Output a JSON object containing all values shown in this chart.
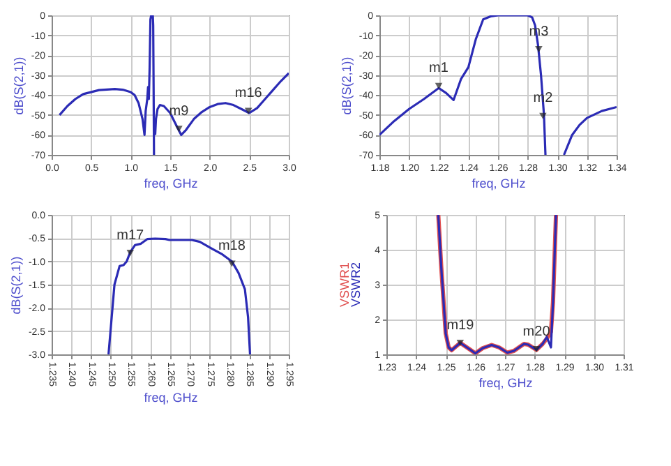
{
  "chart_data": [
    {
      "type": "line",
      "xlabel": "freq, GHz",
      "ylabel": "dB(S(2,1))",
      "x": [
        0.1,
        0.2,
        0.3,
        0.4,
        0.6,
        0.8,
        0.9,
        1.0,
        1.05,
        1.1,
        1.15,
        1.175,
        1.19,
        1.21,
        1.22,
        1.23,
        1.24,
        1.25,
        1.26,
        1.28,
        1.285,
        1.29,
        1.295,
        1.3,
        1.31,
        1.32,
        1.34,
        1.37,
        1.42,
        1.5,
        1.55,
        1.6,
        1.64,
        1.7,
        1.8,
        1.9,
        2.0,
        2.1,
        2.2,
        2.3,
        2.4,
        2.5,
        2.6,
        2.7,
        2.8,
        2.9,
        3.0
      ],
      "series": [
        {
          "color": "#2b2bb5",
          "values": [
            -50,
            -45.5,
            -42,
            -39.5,
            -37.5,
            -37,
            -37.3,
            -38.5,
            -40,
            -44,
            -52,
            -60,
            -48,
            -42,
            -36,
            -42,
            -26,
            -2,
            0,
            0,
            -5,
            -35,
            -70,
            null,
            -60,
            -52,
            -47,
            -45,
            -45.5,
            -49,
            -53,
            -57,
            -60,
            -57.5,
            -52,
            -48.5,
            -46,
            -44.5,
            -44,
            -45,
            -47,
            -49,
            -46.5,
            -42,
            -37.5,
            -33,
            -29
          ]
        }
      ],
      "xlim": [
        0,
        3
      ],
      "ylim": [
        -70,
        0
      ],
      "xticks": [
        {
          "value": 0,
          "label": "0.0"
        },
        0.5,
        {
          "value": 1,
          "label": "1.0"
        },
        1.5,
        {
          "value": 2,
          "label": "2.0"
        },
        2.5,
        {
          "value": 3,
          "label": "3.0"
        }
      ],
      "yticks": [
        -70,
        -60,
        -50,
        -40,
        -30,
        -20,
        -10,
        0
      ],
      "grid": true,
      "annotations": [
        {
          "text": "m9",
          "x": 1.61,
          "y": -57
        },
        {
          "text": "m16",
          "x": 2.49,
          "y": -48
        }
      ]
    },
    {
      "type": "line",
      "xlabel": "freq, GHz",
      "ylabel": "dB(S(2,1))",
      "x": [
        1.18,
        1.19,
        1.2,
        1.21,
        1.22,
        1.225,
        1.23,
        1.235,
        1.24,
        1.245,
        1.25,
        1.255,
        1.26,
        1.28,
        1.283,
        1.285,
        1.287,
        1.289,
        1.291,
        1.292,
        1.3,
        1.3045,
        1.31,
        1.315,
        1.32,
        1.33,
        1.34
      ],
      "series": [
        {
          "color": "#2b2bb5",
          "values": [
            -60,
            -53,
            -47,
            -42,
            -36.5,
            -39,
            -42.5,
            -32,
            -26,
            -12,
            -2,
            -0.5,
            0,
            0,
            -1,
            -5,
            -15,
            -30,
            -50,
            -70,
            null,
            -70,
            -60,
            -55,
            -51.5,
            -48,
            -46
          ]
        }
      ],
      "xlim": [
        1.18,
        1.34
      ],
      "ylim": [
        -70,
        0
      ],
      "xticks": [
        1.18,
        {
          "value": 1.2,
          "label": "1.20"
        },
        1.22,
        1.24,
        1.26,
        1.28,
        {
          "value": 1.3,
          "label": "1.30"
        },
        1.32,
        1.34
      ],
      "yticks": [
        -70,
        -60,
        -50,
        -40,
        -30,
        -20,
        -10,
        0
      ],
      "grid": true,
      "annotations": [
        {
          "text": "m1",
          "x": 1.22,
          "y": -35.5
        },
        {
          "text": "m3",
          "x": 1.2875,
          "y": -17
        },
        {
          "text": "m2",
          "x": 1.2903,
          "y": -50.5
        }
      ]
    },
    {
      "type": "line",
      "xlabel": "freq, GHz",
      "ylabel": "dB(S(2,1))",
      "x": [
        1.2494,
        1.2501,
        1.2509,
        1.2522,
        1.2532,
        1.254,
        1.2549,
        1.2561,
        1.2576,
        1.2592,
        1.2612,
        1.2638,
        1.2648,
        1.2705,
        1.2725,
        1.2756,
        1.2782,
        1.2806,
        1.2823,
        1.2839,
        1.2847,
        1.2852
      ],
      "series": [
        {
          "color": "#2b2bb5",
          "values": [
            -3,
            -2.3,
            -1.5,
            -1.1,
            -1.08,
            -1,
            -0.8,
            -0.65,
            -0.62,
            -0.52,
            -0.51,
            -0.52,
            -0.54,
            -0.54,
            -0.58,
            -0.73,
            -0.85,
            -1,
            -1.25,
            -1.6,
            -2.2,
            -3
          ]
        }
      ],
      "xlim": [
        1.235,
        1.295
      ],
      "ylim": [
        -3,
        0
      ],
      "xticks": [
        1.235,
        {
          "value": 1.24,
          "label": "1.240"
        },
        1.245,
        {
          "value": 1.25,
          "label": "1.250"
        },
        1.255,
        {
          "value": 1.26,
          "label": "1.260"
        },
        1.265,
        {
          "value": 1.27,
          "label": "1.270"
        },
        1.275,
        {
          "value": 1.28,
          "label": "1.280"
        },
        1.285,
        {
          "value": 1.29,
          "label": "1.290"
        },
        1.295
      ],
      "yticks": [
        {
          "value": -3,
          "label": "-3.0"
        },
        -2.5,
        {
          "value": -2,
          "label": "-2.0"
        },
        -1.5,
        {
          "value": -1,
          "label": "-1.0"
        },
        -0.5,
        {
          "value": 0,
          "label": "0.0"
        }
      ],
      "grid": true,
      "annotations": [
        {
          "text": "m17",
          "x": 1.2549,
          "y": -0.82
        },
        {
          "text": "m18",
          "x": 1.2806,
          "y": -1.05
        }
      ]
    },
    {
      "type": "line",
      "xlabel": "freq, GHz",
      "x": [
        1.2475,
        1.2485,
        1.25,
        1.251,
        1.252,
        1.2549,
        1.258,
        1.26,
        1.2625,
        1.2655,
        1.268,
        1.2708,
        1.273,
        1.2764,
        1.2778,
        1.2806,
        1.2827,
        1.2841,
        1.2855,
        1.2862,
        1.2872
      ],
      "series": [
        {
          "name": "VSWR1",
          "color": "#e05050",
          "values": [
            5,
            3.5,
            1.6,
            1.2,
            1.12,
            1.33,
            1.15,
            1.03,
            1.18,
            1.27,
            1.2,
            1.05,
            1.1,
            1.3,
            1.28,
            1.13,
            1.3,
            1.45,
            1.65,
            2.5,
            5
          ]
        },
        {
          "name": "VSWR2",
          "color": "#2b2bb5",
          "values": [
            5,
            3.5,
            1.6,
            1.2,
            1.12,
            1.33,
            1.15,
            1.03,
            1.18,
            1.27,
            1.2,
            1.05,
            1.1,
            1.3,
            1.28,
            1.13,
            1.3,
            1.5,
            1.2,
            2.5,
            5
          ]
        }
      ],
      "xlim": [
        1.23,
        1.31
      ],
      "ylim": [
        1,
        5
      ],
      "xticks": [
        1.23,
        1.24,
        1.25,
        1.26,
        1.27,
        1.28,
        1.29,
        {
          "value": 1.3,
          "label": "1.30"
        },
        1.31
      ],
      "yticks": [
        1,
        2,
        3,
        4,
        5
      ],
      "grid": true,
      "annotations": [
        {
          "text": "m19",
          "x": 1.2549,
          "y": 1.33
        },
        {
          "text": "m20",
          "x": 1.2806,
          "y": 1.15
        }
      ]
    }
  ]
}
